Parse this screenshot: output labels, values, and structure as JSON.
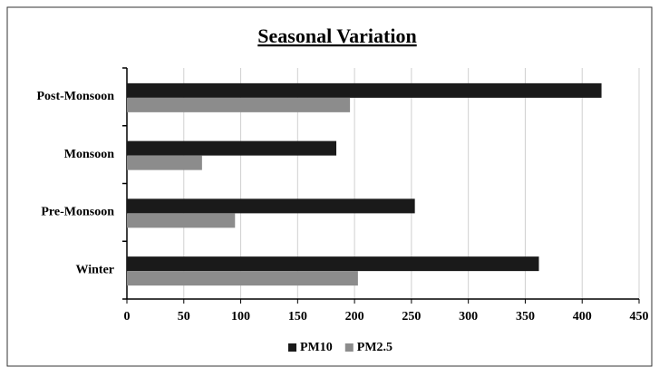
{
  "chart_data": {
    "type": "hbar",
    "title": "Seasonal Variation",
    "categories": [
      "Winter",
      "Pre-Monsoon",
      "Monsoon",
      "Post-Monsoon"
    ],
    "series": [
      {
        "name": "PM10",
        "color": "#1a1a1a",
        "values": [
          362,
          253,
          184,
          417
        ]
      },
      {
        "name": "PM2.5",
        "color": "#8c8c8c",
        "values": [
          203,
          95,
          66,
          196
        ]
      }
    ],
    "xlim": [
      0,
      450
    ],
    "xticks": [
      0,
      50,
      100,
      150,
      200,
      250,
      300,
      350,
      400,
      450
    ],
    "grid": true
  }
}
